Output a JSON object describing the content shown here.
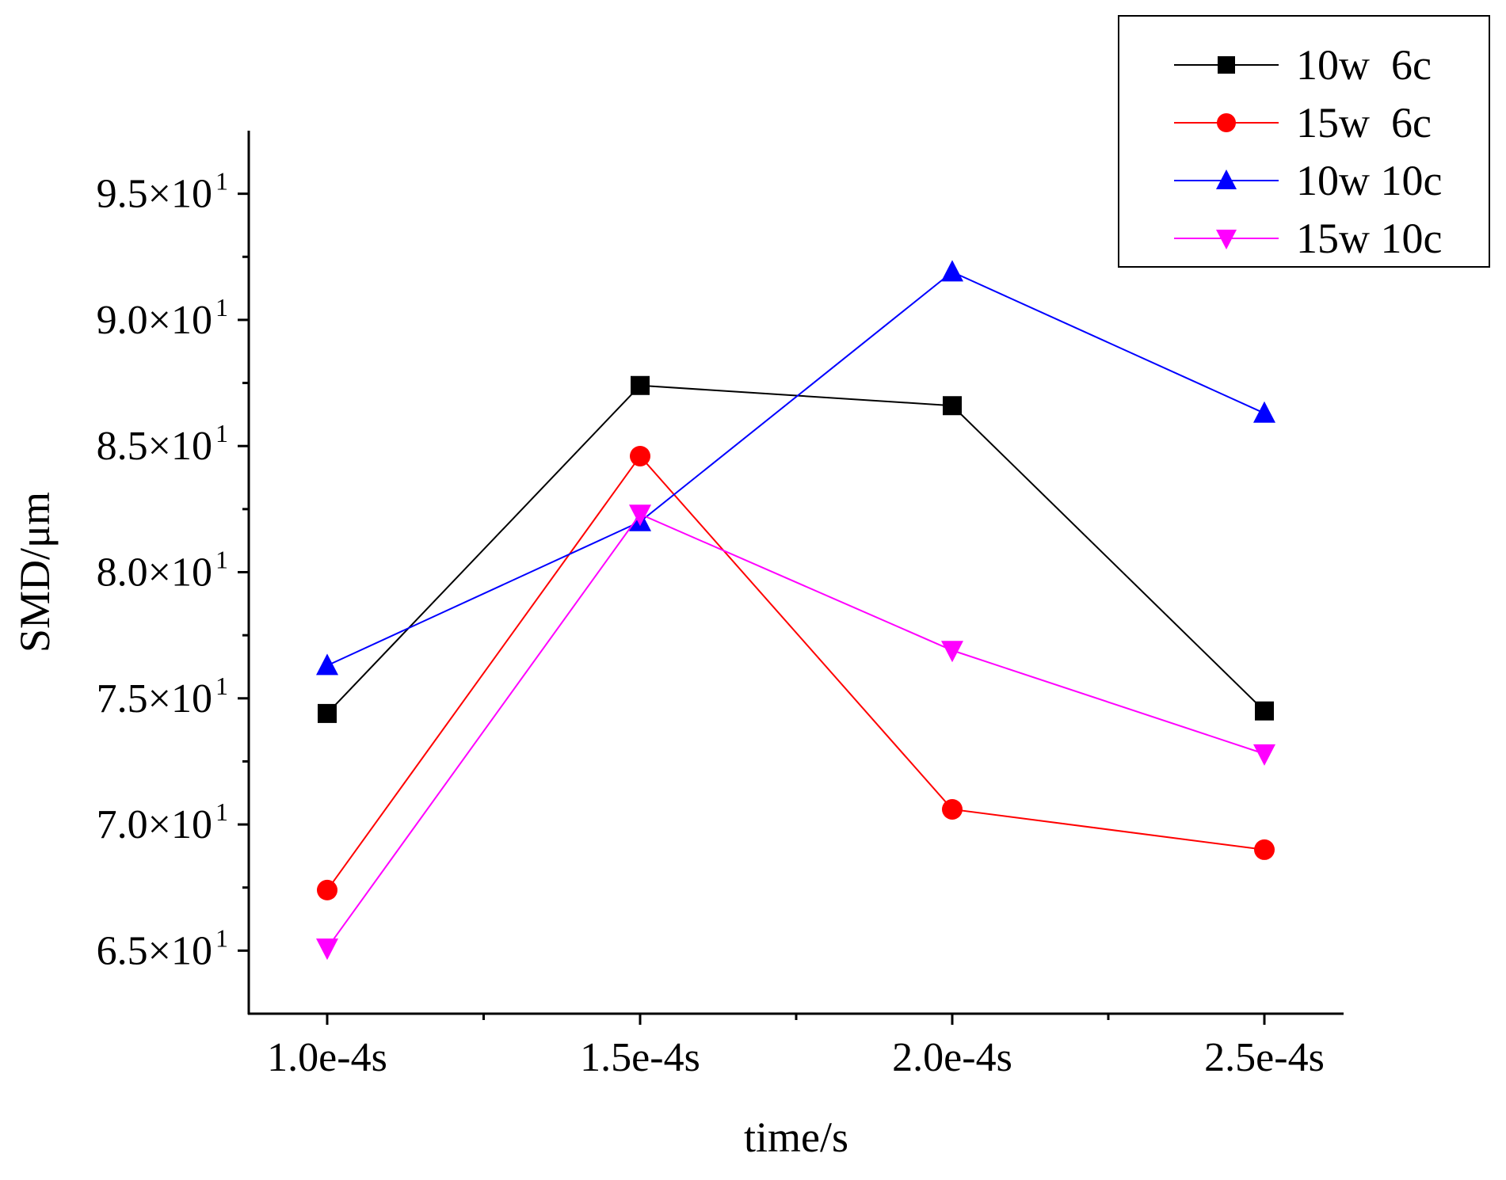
{
  "chart_data": {
    "type": "line",
    "title": "",
    "xlabel": "time/s",
    "ylabel": "SMD/μm",
    "categories": [
      "1.0e-4s",
      "1.5e-4s",
      "2.0e-4s",
      "2.5e-4s"
    ],
    "ylim": [
      62.5,
      97.5
    ],
    "yticks": [
      65,
      70,
      75,
      80,
      85,
      90,
      95
    ],
    "ytick_labels": [
      {
        "mantissa": "6.5×10",
        "exp": "1"
      },
      {
        "mantissa": "7.0×10",
        "exp": "1"
      },
      {
        "mantissa": "7.5×10",
        "exp": "1"
      },
      {
        "mantissa": "8.0×10",
        "exp": "1"
      },
      {
        "mantissa": "8.5×10",
        "exp": "1"
      },
      {
        "mantissa": "9.0×10",
        "exp": "1"
      },
      {
        "mantissa": "9.5×10",
        "exp": "1"
      }
    ],
    "grid": false,
    "legend_position": "top-right",
    "series": [
      {
        "name": "10w  6c",
        "color": "#000000",
        "marker": "square",
        "values": [
          74.4,
          87.4,
          86.6,
          74.5
        ]
      },
      {
        "name": "15w  6c",
        "color": "#ff0000",
        "marker": "circle",
        "values": [
          67.4,
          84.6,
          70.6,
          69.0
        ]
      },
      {
        "name": "10w 10c",
        "color": "#0000ff",
        "marker": "triangle-up",
        "values": [
          76.3,
          82.0,
          91.9,
          86.3
        ]
      },
      {
        "name": "15w 10c",
        "color": "#ff00ff",
        "marker": "triangle-down",
        "values": [
          65.1,
          82.3,
          76.9,
          72.8
        ]
      }
    ]
  }
}
